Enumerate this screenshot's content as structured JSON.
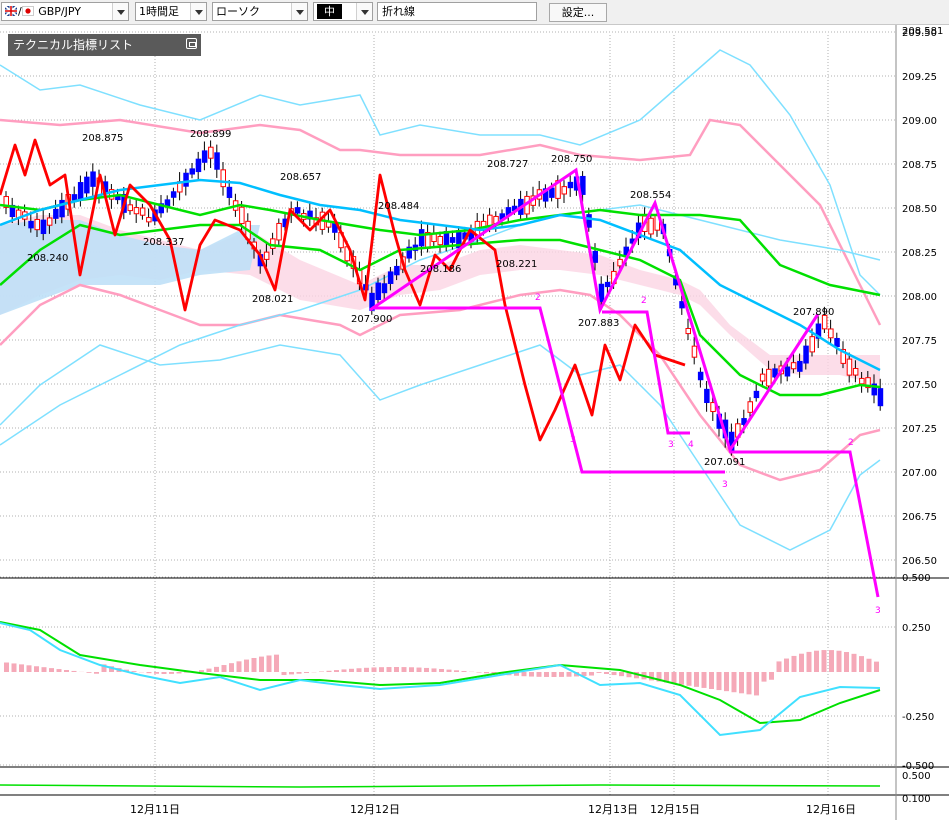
{
  "toolbar": {
    "symbol": "GBP/JPY",
    "period": "1時間足",
    "chart_type": "ローソク",
    "size": "中",
    "line_style": "折れ線",
    "settings_label": "設定..."
  },
  "indicator_panel": {
    "title": "テクニカル指標リスト"
  },
  "price_axis": [
    "209.50",
    "209.25",
    "209.00",
    "208.75",
    "208.50",
    "208.25",
    "208.00",
    "207.75",
    "207.50",
    "207.25",
    "207.00",
    "206.75",
    "206.50"
  ],
  "price_axis_top": "208.581",
  "oscillator_axis": [
    "0.500",
    "0.250",
    "-0.250",
    "-0.500"
  ],
  "bottom_axis": [
    "0.500",
    "0.100"
  ],
  "date_labels": [
    "12月11日",
    "12月12日",
    "12月13日",
    "12月15日",
    "12月16日"
  ],
  "price_labels": [
    "208.875",
    "208.899",
    "208.657",
    "208.484",
    "208.727",
    "208.750",
    "208.554",
    "208.240",
    "208.337",
    "208.021",
    "207.900",
    "208.186",
    "208.221",
    "207.883",
    "207.091",
    "207.890"
  ],
  "wave_labels": [
    "2",
    "3",
    "2",
    "3",
    "4",
    "3",
    "2",
    "3"
  ],
  "colors": {
    "bullish": "#ff0000",
    "bearish": "#0000ff",
    "zigzag": "#ff00ff",
    "close_line": "#ff0000",
    "ma_cyan": "#00bfff",
    "ma_green": "#00e000",
    "band_pink": "#ff9ec0",
    "band_cyan": "#7fe0ff",
    "grid": "#b0b0b0"
  }
}
